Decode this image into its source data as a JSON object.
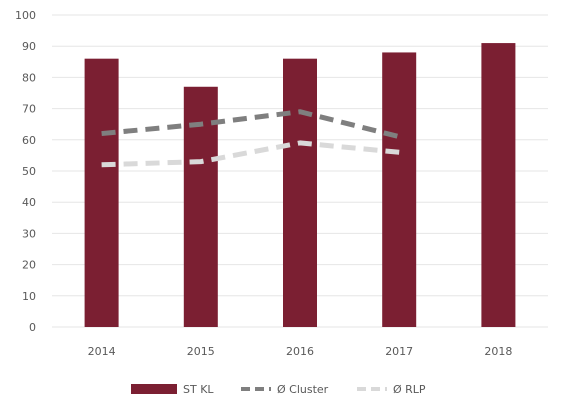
{
  "chart_data": {
    "type": "bar",
    "categories": [
      "2014",
      "2015",
      "2016",
      "2017",
      "2018"
    ],
    "ylim": [
      0,
      100
    ],
    "yticks": [
      0,
      10,
      20,
      30,
      40,
      50,
      60,
      70,
      80,
      90,
      100
    ],
    "grid": true,
    "legend_position": "bottom",
    "series": [
      {
        "name": "ST KL",
        "kind": "bar",
        "color": "#7b1f32",
        "values": [
          86,
          77,
          86,
          88,
          91
        ]
      },
      {
        "name": "Ø Cluster",
        "kind": "line",
        "style": "dashed",
        "color": "#7f7f7f",
        "values": [
          62,
          65,
          69,
          61,
          null
        ]
      },
      {
        "name": "Ø RLP",
        "kind": "line",
        "style": "dashed",
        "color": "#d9d9d9",
        "values": [
          52,
          53,
          59,
          56,
          null
        ]
      }
    ]
  }
}
